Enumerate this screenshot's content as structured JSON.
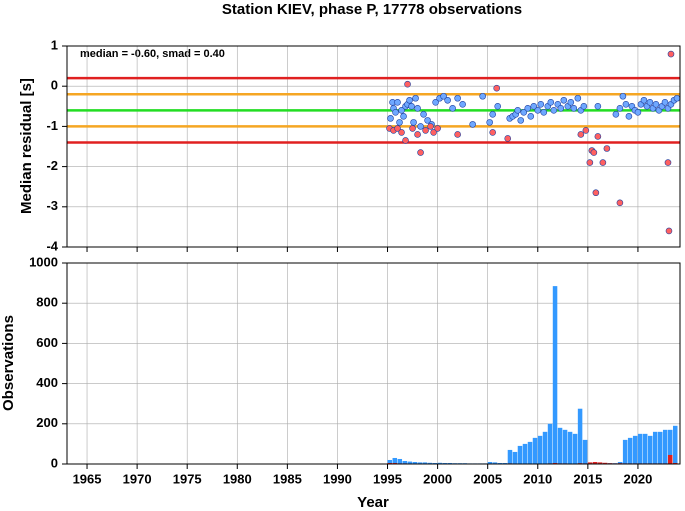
{
  "chart_data": [
    {
      "type": "scatter",
      "title": "Station KIEV, phase P, 17778 observations",
      "ylabel": "Median residual [s]",
      "annotation": "median = -0.60, smad = 0.40",
      "xlim": [
        1963,
        2024.2
      ],
      "xticks": [
        1965,
        1970,
        1975,
        1980,
        1985,
        1990,
        1995,
        2000,
        2005,
        2010,
        2015,
        2020
      ],
      "ylim": [
        -4,
        1
      ],
      "yticks": [
        -4,
        -3,
        -2,
        -1,
        0,
        1
      ],
      "grid": true,
      "hlines": [
        {
          "value": 0.2,
          "color": "#e02020"
        },
        {
          "value": -0.2,
          "color": "#f5a623"
        },
        {
          "value": -0.6,
          "color": "#22dd22"
        },
        {
          "value": -1.0,
          "color": "#f5a623"
        },
        {
          "value": -1.4,
          "color": "#e02020"
        }
      ],
      "series": [
        {
          "color": "#6fa8ff",
          "x": [
            1995.3,
            1995.5,
            1995.6,
            1995.8,
            1996.0,
            1996.2,
            1996.4,
            1996.6,
            1996.8,
            1997.0,
            1997.2,
            1997.4,
            1997.6,
            1997.8,
            1998.0,
            1998.3,
            1998.6,
            1999.0,
            1999.4,
            1999.8,
            2000.2,
            2000.6,
            2001.0,
            2001.5,
            2002.0,
            2002.5,
            2003.5,
            2004.5,
            2005.2,
            2005.5,
            2006.0,
            2007.2,
            2007.5,
            2007.8,
            2008.0,
            2008.3,
            2008.6,
            2009.0,
            2009.3,
            2009.6,
            2010.0,
            2010.3,
            2010.6,
            2011.0,
            2011.3,
            2011.6,
            2012.0,
            2012.3,
            2012.6,
            2013.0,
            2013.3,
            2013.6,
            2014.0,
            2014.3,
            2014.6,
            2016.0,
            2017.8,
            2018.2,
            2018.5,
            2018.8,
            2019.1,
            2019.4,
            2019.7,
            2020.0,
            2020.3,
            2020.6,
            2020.9,
            2021.2,
            2021.5,
            2021.8,
            2022.1,
            2022.4,
            2022.7,
            2023.0,
            2023.3,
            2023.6,
            2023.9
          ],
          "values": [
            -0.8,
            -0.4,
            -0.55,
            -0.65,
            -0.4,
            -0.9,
            -0.6,
            -0.75,
            -0.5,
            -0.45,
            -0.35,
            -0.5,
            -0.9,
            -0.3,
            -0.55,
            -1.0,
            -0.7,
            -0.85,
            -0.95,
            -0.4,
            -0.3,
            -0.25,
            -0.35,
            -0.55,
            -0.3,
            -0.45,
            -0.95,
            -0.25,
            -0.9,
            -0.7,
            -0.5,
            -0.8,
            -0.75,
            -0.7,
            -0.6,
            -0.85,
            -0.65,
            -0.55,
            -0.75,
            -0.5,
            -0.6,
            -0.45,
            -0.65,
            -0.5,
            -0.4,
            -0.6,
            -0.45,
            -0.55,
            -0.35,
            -0.5,
            -0.4,
            -0.55,
            -0.3,
            -0.6,
            -0.5,
            -0.5,
            -0.7,
            -0.55,
            -0.25,
            -0.45,
            -0.75,
            -0.5,
            -0.6,
            -0.65,
            -0.45,
            -0.35,
            -0.5,
            -0.4,
            -0.55,
            -0.45,
            -0.6,
            -0.5,
            -0.4,
            -0.55,
            -0.45,
            -0.35,
            -0.3
          ]
        },
        {
          "color": "#ff6060",
          "x": [
            1995.2,
            1995.6,
            1996.0,
            1996.4,
            1996.8,
            1997.0,
            1997.5,
            1998.0,
            1998.3,
            1998.8,
            1999.3,
            1999.6,
            2000.0,
            2002.0,
            2005.5,
            2005.9,
            2007.0,
            2014.3,
            2014.8,
            2015.2,
            2015.4,
            2015.6,
            2015.8,
            2016.0,
            2016.5,
            2016.9,
            2018.2,
            2023.0,
            2023.1,
            2023.3
          ],
          "values": [
            -1.05,
            -1.1,
            -1.05,
            -1.15,
            -1.35,
            0.05,
            -1.05,
            -1.2,
            -1.65,
            -1.1,
            -1.0,
            -1.15,
            -1.05,
            -1.2,
            -1.15,
            -0.05,
            -1.3,
            -1.2,
            -1.1,
            -1.9,
            -1.6,
            -1.65,
            -2.65,
            -1.25,
            -1.9,
            -1.55,
            -2.9,
            -1.9,
            -3.6,
            0.8
          ]
        }
      ]
    },
    {
      "type": "histogram",
      "ylabel": "Observations",
      "xlabel": "Year",
      "xlim": [
        1963,
        2024.2
      ],
      "xticks": [
        1965,
        1970,
        1975,
        1980,
        1985,
        1990,
        1995,
        2000,
        2005,
        2010,
        2015,
        2020
      ],
      "ylim": [
        0,
        1000
      ],
      "yticks": [
        0,
        200,
        400,
        600,
        800,
        1000
      ],
      "grid": true,
      "bins": [
        1995,
        1995.5,
        1996,
        1996.5,
        1997,
        1997.5,
        1998,
        1998.5,
        1999,
        1999.5,
        2000,
        2000.5,
        2001,
        2001.5,
        2002,
        2002.5,
        2003,
        2003.5,
        2004,
        2004.5,
        2005,
        2005.5,
        2006,
        2006.5,
        2007,
        2007.5,
        2008,
        2008.5,
        2009,
        2009.5,
        2010,
        2010.5,
        2011,
        2011.5,
        2012,
        2012.5,
        2013,
        2013.5,
        2014,
        2014.5,
        2015,
        2015.5,
        2016,
        2016.5,
        2017,
        2017.5,
        2018,
        2018.5,
        2019,
        2019.5,
        2020,
        2020.5,
        2021,
        2021.5,
        2022,
        2022.5,
        2023,
        2023.5,
        2024
      ],
      "series": [
        {
          "color": "#3399ff",
          "values": [
            20,
            30,
            25,
            15,
            12,
            10,
            8,
            8,
            6,
            5,
            6,
            5,
            5,
            4,
            4,
            4,
            3,
            3,
            3,
            3,
            10,
            8,
            5,
            5,
            70,
            60,
            90,
            100,
            110,
            130,
            140,
            160,
            200,
            885,
            180,
            170,
            160,
            150,
            275,
            120,
            5,
            8,
            6,
            5,
            4,
            4,
            10,
            120,
            130,
            140,
            150,
            150,
            140,
            160,
            160,
            170,
            170,
            190
          ]
        },
        {
          "color": "#e02020",
          "values": [
            5,
            5,
            3,
            3,
            2,
            2,
            2,
            2,
            1,
            1,
            1,
            1,
            1,
            1,
            1,
            1,
            1,
            1,
            1,
            1,
            2,
            2,
            1,
            1,
            3,
            2,
            2,
            2,
            2,
            2,
            2,
            2,
            3,
            5,
            3,
            3,
            2,
            2,
            4,
            3,
            8,
            10,
            8,
            6,
            4,
            3,
            4,
            3,
            3,
            3,
            3,
            3,
            3,
            3,
            3,
            3,
            45,
            5
          ]
        }
      ]
    }
  ]
}
